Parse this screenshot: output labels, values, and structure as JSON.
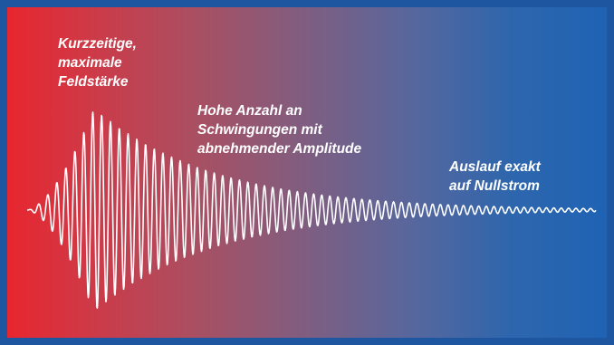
{
  "labels": {
    "peak": [
      "Kurzzeitige,",
      "maximale",
      "Feldstärke"
    ],
    "decay": [
      "Hohe Anzahl an",
      "Schwingungen mit",
      "abnehmender Amplitude"
    ],
    "end": [
      "Auslauf exakt",
      "auf Nullstrom"
    ]
  },
  "colors": {
    "gradient_start": "#e8262f",
    "gradient_end": "#1f63b4",
    "frame": "#1e56a0",
    "wave": "#ffffff"
  }
}
